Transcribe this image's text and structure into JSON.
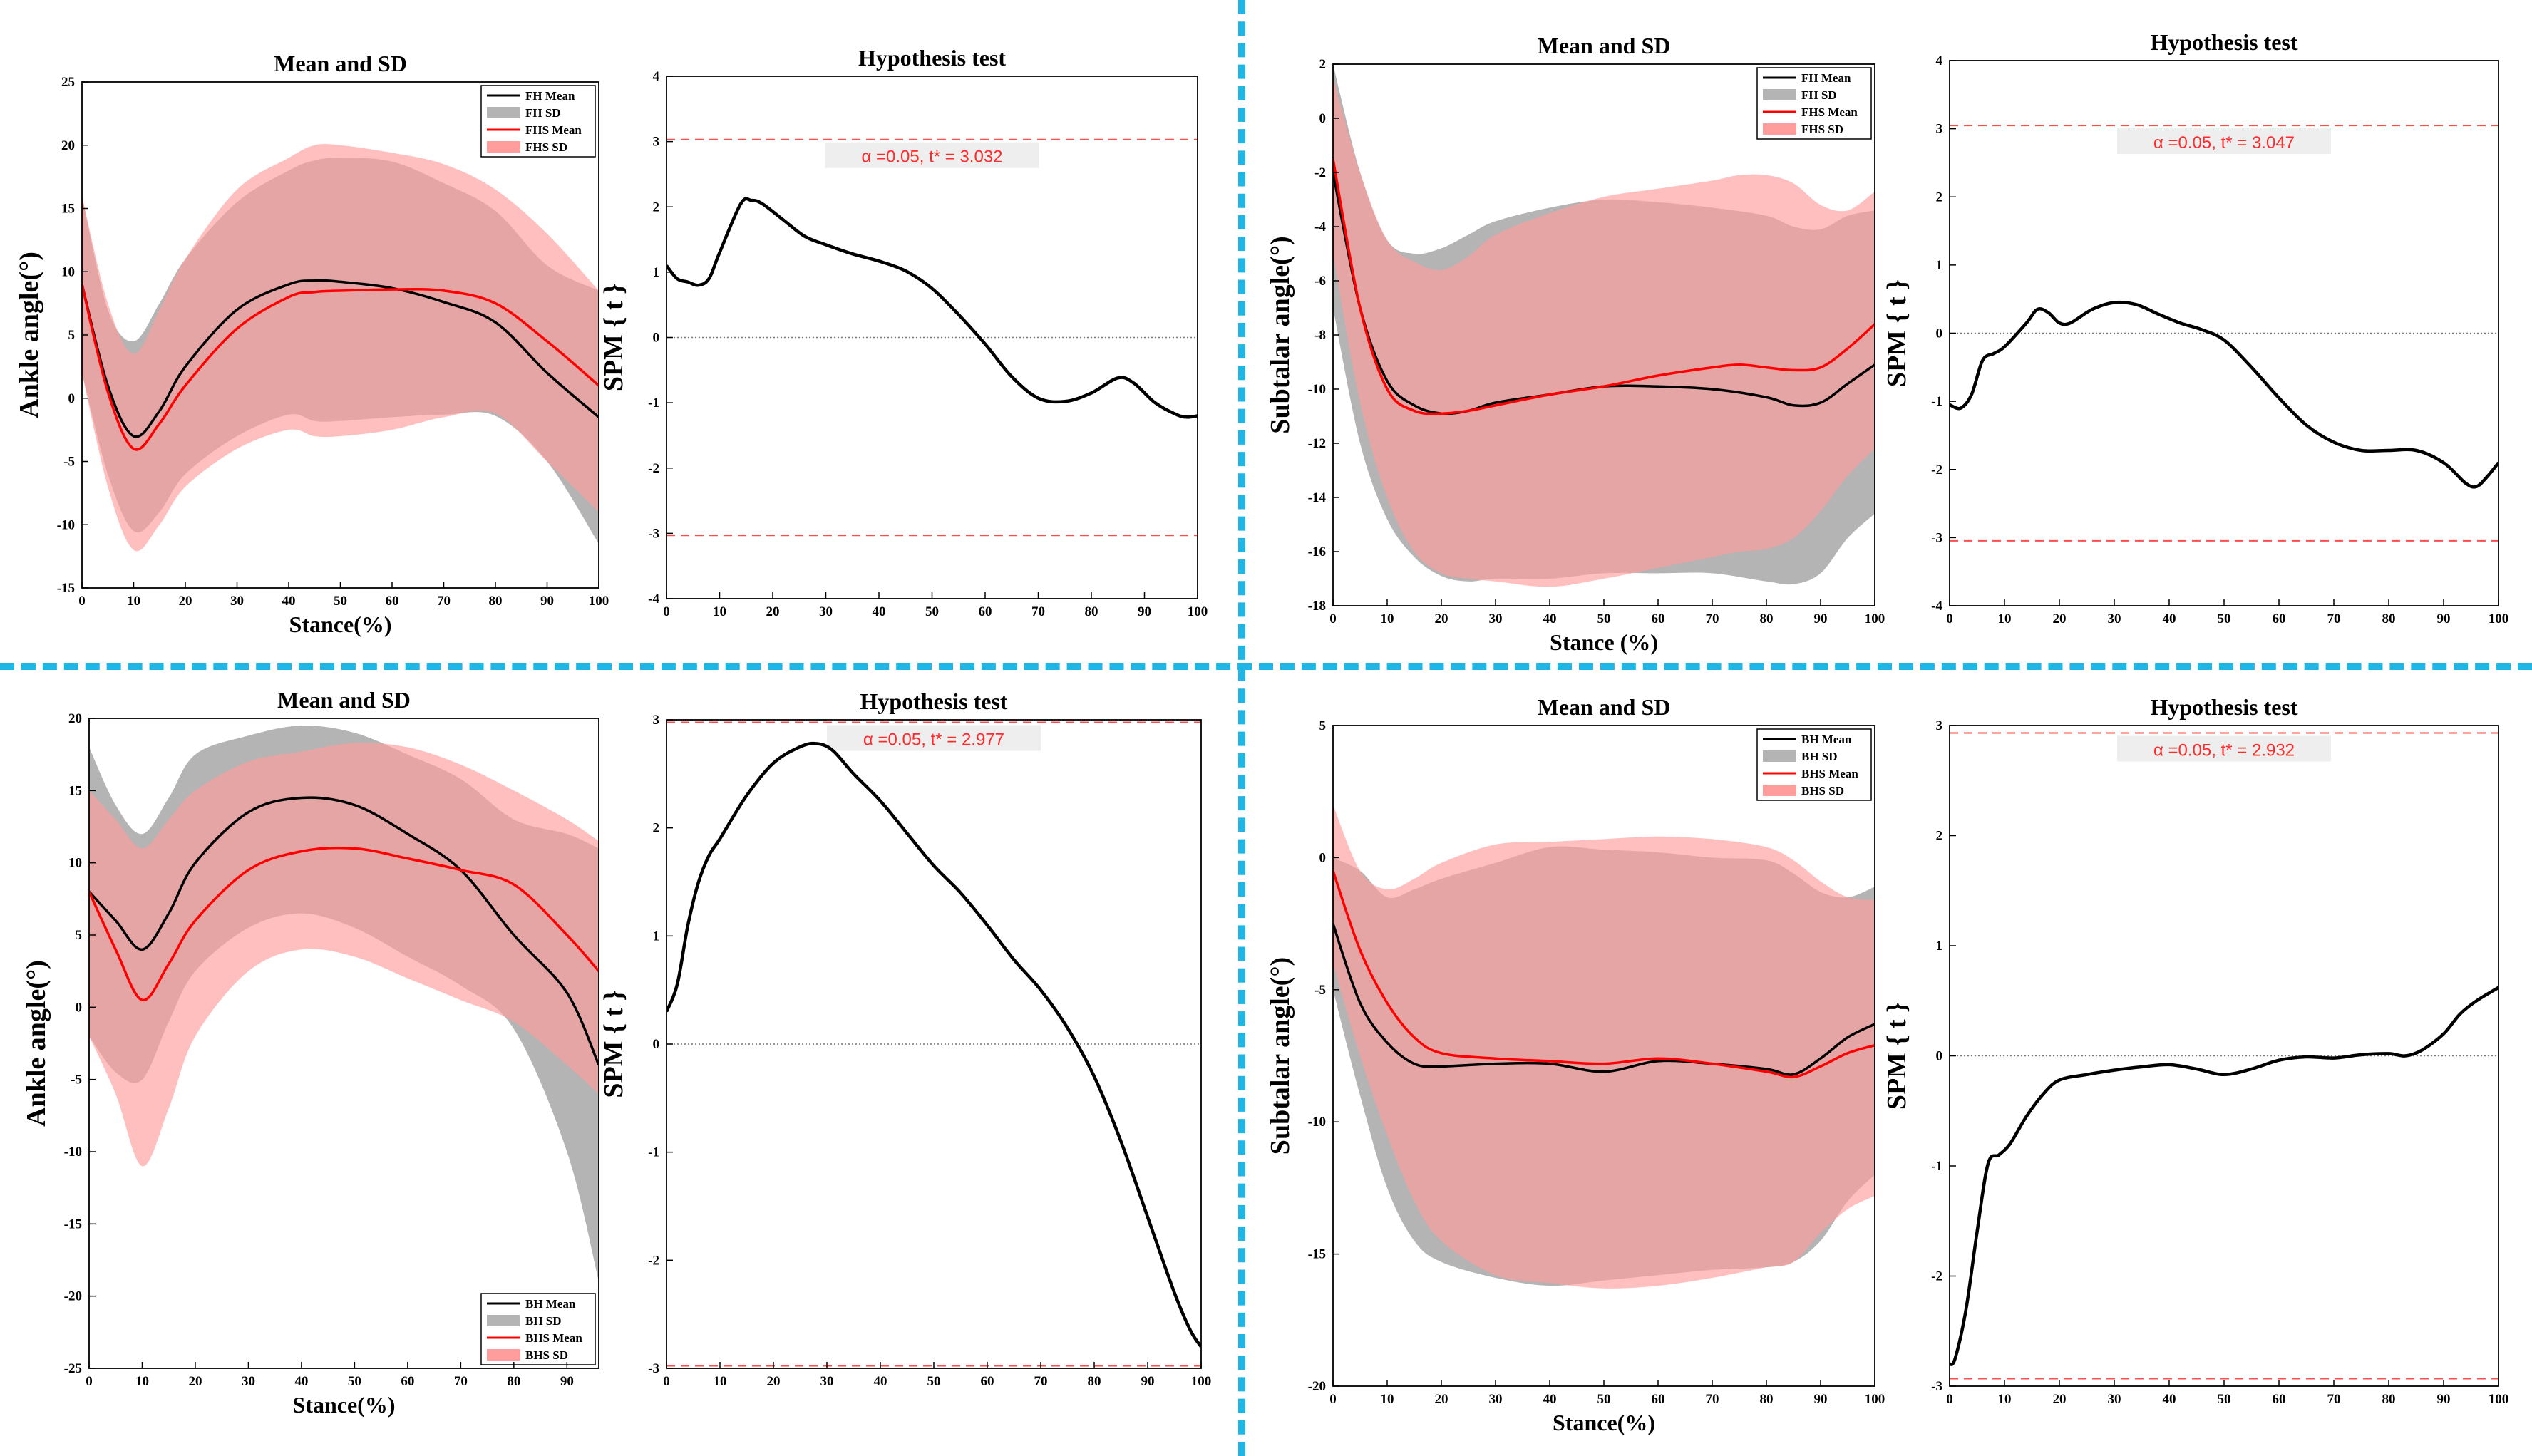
{
  "colors": {
    "mean_a": "#000000",
    "mean_b": "#ff0000",
    "sd_a": "#b4b4b4",
    "sd_b": "#ff9c9c",
    "overlap": "#e08a8a",
    "threshold": "#ff4d4d",
    "separator": "#1fb6e6",
    "spm_line": "#000000"
  },
  "chart_data": [
    {
      "id": "p1",
      "type": "area",
      "title": "Mean and SD",
      "xlabel": "Stance(%)",
      "ylabel": "Ankle angle(°)",
      "xlim": [
        0,
        100
      ],
      "ylim": [
        -15,
        25
      ],
      "xticks": [
        0,
        10,
        20,
        30,
        40,
        50,
        60,
        70,
        80,
        90,
        100
      ],
      "yticks": [
        -15,
        -10,
        -5,
        0,
        5,
        10,
        15,
        20,
        25
      ],
      "legend": [
        "FH Mean",
        "FH SD",
        "FHS Mean",
        "FHS SD"
      ],
      "legend_loc": "top-right",
      "series": [
        {
          "name": "FH",
          "x": [
            0,
            5,
            10,
            15,
            20,
            30,
            40,
            45,
            50,
            60,
            70,
            80,
            90,
            100
          ],
          "mean": [
            9,
            1,
            -3,
            -1,
            2.5,
            7,
            9.0,
            9.3,
            9.2,
            8.7,
            7.6,
            6,
            2,
            -1.5
          ],
          "lower": [
            2,
            -6,
            -10.5,
            -9,
            -6,
            -3,
            -1.3,
            -1.8,
            -1.8,
            -1.5,
            -1.3,
            -1.4,
            -5,
            -11.5
          ],
          "upper": [
            16,
            7,
            4.5,
            7.5,
            11,
            15.5,
            18,
            18.8,
            19,
            18.7,
            17,
            14.8,
            10.5,
            8.5
          ]
        },
        {
          "name": "FHS",
          "x": [
            0,
            5,
            10,
            15,
            20,
            30,
            40,
            45,
            50,
            60,
            70,
            80,
            90,
            100
          ],
          "mean": [
            9,
            0.5,
            -4,
            -2,
            1,
            5.5,
            8,
            8.4,
            8.5,
            8.6,
            8.5,
            7.5,
            4.5,
            1
          ],
          "lower": [
            2,
            -7,
            -12,
            -10,
            -7,
            -4,
            -2.5,
            -3,
            -3,
            -2.5,
            -1.5,
            -1.2,
            -5,
            -9
          ],
          "upper": [
            16,
            7.5,
            3.5,
            7,
            11,
            16.5,
            19,
            20,
            20,
            19.4,
            18.5,
            16.5,
            13,
            8.5
          ]
        }
      ]
    },
    {
      "id": "p2",
      "type": "line",
      "title": "Hypothesis test",
      "xlabel": "",
      "ylabel": "SPM { t }",
      "xlim": [
        0,
        100
      ],
      "ylim": [
        -4,
        4
      ],
      "xticks": [
        0,
        10,
        20,
        30,
        40,
        50,
        60,
        70,
        80,
        90,
        100
      ],
      "yticks": [
        -4,
        -3,
        -2,
        -1,
        0,
        1,
        2,
        3,
        4
      ],
      "threshold": 3.032,
      "annotation": "α =0.05,     t* = 3.032",
      "x": [
        0,
        2,
        4,
        6,
        8,
        10,
        14,
        16,
        18,
        22,
        26,
        30,
        35,
        40,
        45,
        50,
        55,
        60,
        65,
        70,
        75,
        80,
        85,
        88,
        92,
        96,
        98,
        100
      ],
      "y": [
        1.1,
        0.9,
        0.85,
        0.8,
        0.9,
        1.3,
        2.05,
        2.1,
        2.05,
        1.8,
        1.55,
        1.42,
        1.28,
        1.17,
        1.02,
        0.75,
        0.35,
        -0.1,
        -0.6,
        -0.93,
        -0.98,
        -0.85,
        -0.62,
        -0.7,
        -1.0,
        -1.18,
        -1.22,
        -1.2
      ]
    },
    {
      "id": "p3",
      "type": "area",
      "title": "Mean and SD",
      "xlabel": "Stance (%)",
      "ylabel": "Subtalar angle(°)",
      "xlim": [
        0,
        100
      ],
      "ylim": [
        -18,
        2
      ],
      "xticks": [
        0,
        10,
        20,
        30,
        40,
        50,
        60,
        70,
        80,
        90,
        100
      ],
      "yticks": [
        -18,
        -16,
        -14,
        -12,
        -10,
        -8,
        -6,
        -4,
        -2,
        0,
        2
      ],
      "legend": [
        "FH Mean",
        "FH SD",
        "FHS Mean",
        "FHS SD"
      ],
      "legend_loc": "top-right",
      "series": [
        {
          "name": "FH",
          "x": [
            0,
            5,
            10,
            15,
            20,
            25,
            30,
            40,
            50,
            60,
            70,
            80,
            85,
            90,
            95,
            100
          ],
          "mean": [
            -2,
            -7,
            -9.7,
            -10.6,
            -10.9,
            -10.8,
            -10.5,
            -10.2,
            -9.9,
            -9.9,
            -10.0,
            -10.3,
            -10.6,
            -10.5,
            -9.8,
            -9.1
          ],
          "lower": [
            -7,
            -12,
            -14.8,
            -16.2,
            -16.9,
            -17.1,
            -17.0,
            -17.0,
            -16.8,
            -16.8,
            -16.8,
            -17.1,
            -17.2,
            -16.8,
            -15.5,
            -14.6
          ],
          "upper": [
            2,
            -2,
            -4.5,
            -5.0,
            -4.8,
            -4.3,
            -3.8,
            -3.3,
            -3.0,
            -3.1,
            -3.3,
            -3.6,
            -4.0,
            -4.1,
            -3.6,
            -3.4
          ]
        },
        {
          "name": "FHS",
          "x": [
            0,
            5,
            10,
            15,
            20,
            25,
            30,
            40,
            50,
            60,
            70,
            75,
            80,
            85,
            90,
            95,
            100
          ],
          "mean": [
            -1.5,
            -7,
            -10,
            -10.8,
            -10.9,
            -10.8,
            -10.6,
            -10.2,
            -9.9,
            -9.5,
            -9.2,
            -9.1,
            -9.2,
            -9.3,
            -9.2,
            -8.5,
            -7.6
          ],
          "lower": [
            -5,
            -10.5,
            -14,
            -16,
            -16.8,
            -17.0,
            -17.1,
            -17.3,
            -17.0,
            -16.6,
            -16.2,
            -16.0,
            -15.9,
            -15.5,
            -14.5,
            -13.2,
            -12.2
          ],
          "upper": [
            1.5,
            -2,
            -4.5,
            -5.3,
            -5.6,
            -5.1,
            -4.3,
            -3.5,
            -2.9,
            -2.6,
            -2.3,
            -2.1,
            -2.1,
            -2.4,
            -3.2,
            -3.4,
            -2.7
          ]
        }
      ]
    },
    {
      "id": "p4",
      "type": "line",
      "title": "Hypothesis test",
      "xlabel": "",
      "ylabel": "SPM { t }",
      "xlim": [
        0,
        100
      ],
      "ylim": [
        -4,
        4
      ],
      "xticks": [
        0,
        10,
        20,
        30,
        40,
        50,
        60,
        70,
        80,
        90,
        100
      ],
      "yticks": [
        -4,
        -3,
        -2,
        -1,
        0,
        1,
        2,
        3,
        4
      ],
      "threshold": 3.047,
      "annotation": "α =0.05,     t* = 3.047",
      "x": [
        0,
        2,
        4,
        6,
        8,
        10,
        14,
        16,
        18,
        20,
        22,
        26,
        30,
        34,
        38,
        42,
        46,
        50,
        55,
        60,
        65,
        70,
        75,
        80,
        85,
        90,
        94,
        96,
        98,
        100
      ],
      "y": [
        -1.05,
        -1.1,
        -0.9,
        -0.4,
        -0.3,
        -0.2,
        0.15,
        0.35,
        0.3,
        0.15,
        0.15,
        0.35,
        0.45,
        0.42,
        0.28,
        0.15,
        0.05,
        -0.1,
        -0.5,
        -0.95,
        -1.35,
        -1.6,
        -1.72,
        -1.72,
        -1.72,
        -1.9,
        -2.2,
        -2.25,
        -2.1,
        -1.9
      ]
    },
    {
      "id": "p5",
      "type": "area",
      "title": "Mean and SD",
      "xlabel": "Stance(%)",
      "ylabel": "Ankle angle(°)",
      "xlim": [
        0,
        96
      ],
      "ylim": [
        -25,
        20
      ],
      "xticks": [
        0,
        10,
        20,
        30,
        40,
        50,
        60,
        70,
        80,
        90
      ],
      "yticks": [
        -25,
        -20,
        -15,
        -10,
        -5,
        0,
        5,
        10,
        15,
        20
      ],
      "legend": [
        "BH Mean",
        "BH SD",
        "BHS Mean",
        "BHS SD"
      ],
      "legend_loc": "bottom-right",
      "series": [
        {
          "name": "BH",
          "x": [
            0,
            5,
            10,
            15,
            20,
            30,
            40,
            50,
            60,
            70,
            80,
            90,
            96
          ],
          "mean": [
            8,
            6,
            4,
            6.5,
            10,
            13.5,
            14.5,
            14,
            12,
            9.5,
            5,
            1,
            -4
          ],
          "lower": [
            -2,
            -4.5,
            -5,
            -1,
            2.5,
            5.5,
            6.5,
            5.5,
            3.5,
            1.5,
            -1.5,
            -10,
            -19
          ],
          "upper": [
            18,
            14,
            12,
            14.5,
            17.5,
            18.8,
            19.5,
            19,
            17.5,
            15.8,
            13,
            12,
            11
          ]
        },
        {
          "name": "BHS",
          "x": [
            0,
            5,
            10,
            15,
            20,
            30,
            40,
            50,
            60,
            70,
            80,
            90,
            96
          ],
          "mean": [
            8,
            4,
            0.5,
            3,
            6,
            9.5,
            10.8,
            11,
            10.3,
            9.5,
            8.5,
            5,
            2.5
          ],
          "lower": [
            -2,
            -6,
            -11,
            -7,
            -2,
            2.5,
            4,
            3.5,
            2,
            0.5,
            -1,
            -4,
            -6
          ],
          "upper": [
            15,
            13,
            11,
            13,
            15,
            17,
            17.7,
            18.3,
            18,
            16.8,
            15,
            13,
            11.5
          ]
        }
      ]
    },
    {
      "id": "p6",
      "type": "line",
      "title": "Hypothesis test",
      "xlabel": "",
      "ylabel": "SPM { t }",
      "xlim": [
        0,
        100
      ],
      "ylim": [
        -3,
        3
      ],
      "xticks": [
        0,
        10,
        20,
        30,
        40,
        50,
        60,
        70,
        80,
        90,
        100
      ],
      "yticks": [
        -3,
        -2,
        -1,
        0,
        1,
        2,
        3
      ],
      "threshold": 2.977,
      "annotation": "α =0.05,     t* = 2.977",
      "x": [
        0,
        2,
        4,
        6,
        8,
        10,
        15,
        20,
        25,
        28,
        31,
        35,
        40,
        45,
        50,
        55,
        60,
        65,
        70,
        75,
        80,
        85,
        90,
        95,
        98,
        100
      ],
      "y": [
        0.3,
        0.55,
        1.1,
        1.5,
        1.75,
        1.9,
        2.3,
        2.6,
        2.75,
        2.78,
        2.72,
        2.5,
        2.25,
        1.95,
        1.65,
        1.4,
        1.1,
        0.78,
        0.5,
        0.15,
        -0.3,
        -0.9,
        -1.6,
        -2.3,
        -2.65,
        -2.8
      ]
    },
    {
      "id": "p7",
      "type": "area",
      "title": "Mean and SD",
      "xlabel": "Stance(%)",
      "ylabel": "Subtalar angle(°)",
      "xlim": [
        0,
        100
      ],
      "ylim": [
        -20,
        5
      ],
      "xticks": [
        0,
        10,
        20,
        30,
        40,
        50,
        60,
        70,
        80,
        90,
        100
      ],
      "yticks": [
        -20,
        -15,
        -10,
        -5,
        0,
        5
      ],
      "legend": [
        "BH Mean",
        "BH SD",
        "BHS Mean",
        "BHS SD"
      ],
      "legend_loc": "top-right",
      "series": [
        {
          "name": "BH",
          "x": [
            0,
            5,
            10,
            15,
            20,
            30,
            40,
            50,
            60,
            70,
            80,
            85,
            90,
            95,
            100
          ],
          "mean": [
            -2.5,
            -5.5,
            -7,
            -7.8,
            -7.9,
            -7.8,
            -7.8,
            -8.1,
            -7.7,
            -7.8,
            -8.0,
            -8.2,
            -7.6,
            -6.8,
            -6.3
          ],
          "lower": [
            -5,
            -9,
            -12.5,
            -14.5,
            -15.3,
            -15.9,
            -16.2,
            -16.0,
            -15.8,
            -15.6,
            -15.5,
            -15.3,
            -14.5,
            -13.0,
            -12.0
          ],
          "upper": [
            0,
            -0.5,
            -1.5,
            -1.2,
            -0.8,
            -0.2,
            0.4,
            0.3,
            0.2,
            0,
            -0.1,
            -0.6,
            -1.3,
            -1.5,
            -1.1
          ]
        },
        {
          "name": "BHS",
          "x": [
            0,
            5,
            10,
            15,
            20,
            30,
            40,
            50,
            60,
            70,
            80,
            85,
            90,
            95,
            100
          ],
          "mean": [
            -0.5,
            -3.5,
            -5.5,
            -6.8,
            -7.4,
            -7.6,
            -7.7,
            -7.8,
            -7.6,
            -7.8,
            -8.1,
            -8.3,
            -7.9,
            -7.4,
            -7.1
          ],
          "lower": [
            -4,
            -7.5,
            -10.5,
            -13,
            -14.5,
            -15.8,
            -16.1,
            -16.3,
            -16.2,
            -15.9,
            -15.5,
            -15.3,
            -14.2,
            -13.3,
            -12.8
          ],
          "upper": [
            2,
            -0.5,
            -1.2,
            -0.8,
            -0.2,
            0.5,
            0.6,
            0.7,
            0.8,
            0.7,
            0.4,
            -0.1,
            -0.9,
            -1.5,
            -1.6
          ]
        }
      ]
    },
    {
      "id": "p8",
      "type": "line",
      "title": "Hypothesis test",
      "xlabel": "",
      "ylabel": "SPM { t }",
      "xlim": [
        0,
        100
      ],
      "ylim": [
        -3,
        3
      ],
      "xticks": [
        0,
        10,
        20,
        30,
        40,
        50,
        60,
        70,
        80,
        90,
        100
      ],
      "yticks": [
        -3,
        -2,
        -1,
        0,
        1,
        2,
        3
      ],
      "threshold": 2.932,
      "annotation": "α =0.05,     t* = 2.932",
      "x": [
        0,
        1,
        3,
        5,
        7,
        9,
        11,
        14,
        17,
        20,
        25,
        30,
        35,
        40,
        45,
        50,
        55,
        60,
        65,
        70,
        75,
        80,
        83,
        86,
        90,
        93,
        96,
        100
      ],
      "y": [
        -2.8,
        -2.75,
        -2.3,
        -1.6,
        -0.98,
        -0.9,
        -0.8,
        -0.55,
        -0.35,
        -0.22,
        -0.17,
        -0.13,
        -0.1,
        -0.08,
        -0.12,
        -0.17,
        -0.12,
        -0.04,
        -0.01,
        -0.02,
        0.01,
        0.02,
        0.0,
        0.05,
        0.2,
        0.38,
        0.5,
        0.62
      ]
    }
  ]
}
